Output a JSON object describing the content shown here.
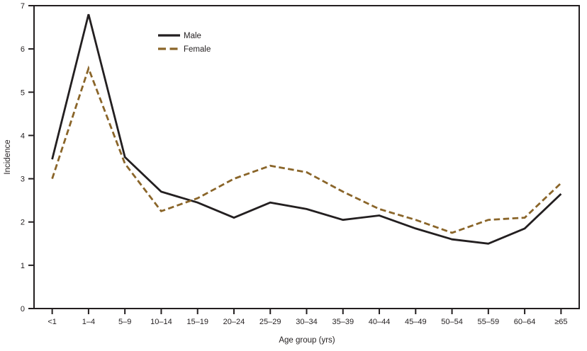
{
  "figure": {
    "background_color": "#ffffff",
    "text_color": "#231f20",
    "axis_color": "#231f20"
  },
  "chart_data": {
    "type": "line",
    "title": "",
    "xlabel": "Age group (yrs)",
    "ylabel": "Incidence",
    "ylim": [
      0,
      7
    ],
    "yticks": [
      0,
      1,
      2,
      3,
      4,
      5,
      6,
      7
    ],
    "grid": false,
    "legend_position": "top-left-inside",
    "categories": [
      "<1",
      "1–4",
      "5–9",
      "10–14",
      "15–19",
      "20–24",
      "25–29",
      "30–34",
      "35–39",
      "40–44",
      "45–49",
      "50–54",
      "55–59",
      "60–64",
      "≥65"
    ],
    "series": [
      {
        "name": "Male",
        "style": "solid",
        "color": "#231f20",
        "values": [
          3.45,
          6.8,
          3.5,
          2.7,
          2.45,
          2.1,
          2.45,
          2.3,
          2.05,
          2.15,
          1.85,
          1.6,
          1.5,
          1.85,
          2.65
        ]
      },
      {
        "name": "Female",
        "style": "dashed",
        "color": "#8a6529",
        "values": [
          3.0,
          5.55,
          3.35,
          2.25,
          2.55,
          3.0,
          3.3,
          3.15,
          2.7,
          2.3,
          2.05,
          1.75,
          2.05,
          2.1,
          2.9
        ]
      }
    ]
  }
}
